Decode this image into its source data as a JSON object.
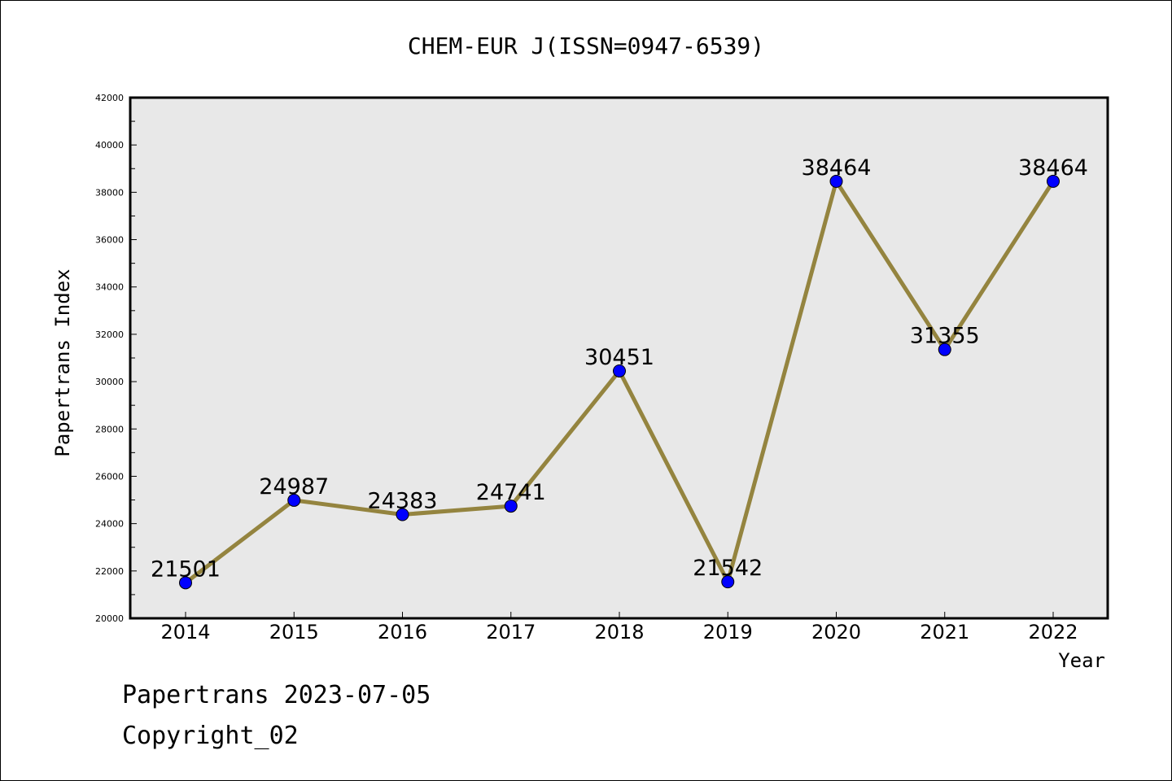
{
  "chart_data": {
    "type": "line",
    "title": "CHEM-EUR J(ISSN=0947-6539)",
    "xlabel": "Year",
    "ylabel": "Papertrans Index",
    "x": [
      "2014",
      "2015",
      "2016",
      "2017",
      "2018",
      "2019",
      "2020",
      "2021",
      "2022"
    ],
    "series": [
      {
        "values": [
          21501,
          24987,
          24383,
          24741,
          30451,
          21542,
          38464,
          31355,
          38464
        ],
        "labels": [
          "21501",
          "24987",
          "24383",
          "24741",
          "30451",
          "21542",
          "38464",
          "31355",
          "38464"
        ]
      }
    ],
    "ylim": [
      20000,
      42000
    ],
    "yticks": [
      "20000",
      "22000",
      "24000",
      "26000",
      "28000",
      "30000",
      "32000",
      "34000",
      "36000",
      "38000",
      "40000",
      "42000"
    ],
    "grid": false,
    "line_color": "#94843f",
    "marker_color": "#0000ff",
    "plot_background": "#e8e8e8"
  },
  "footer": {
    "line1": "Papertrans 2023-07-05",
    "line2": "Copyright_02"
  }
}
